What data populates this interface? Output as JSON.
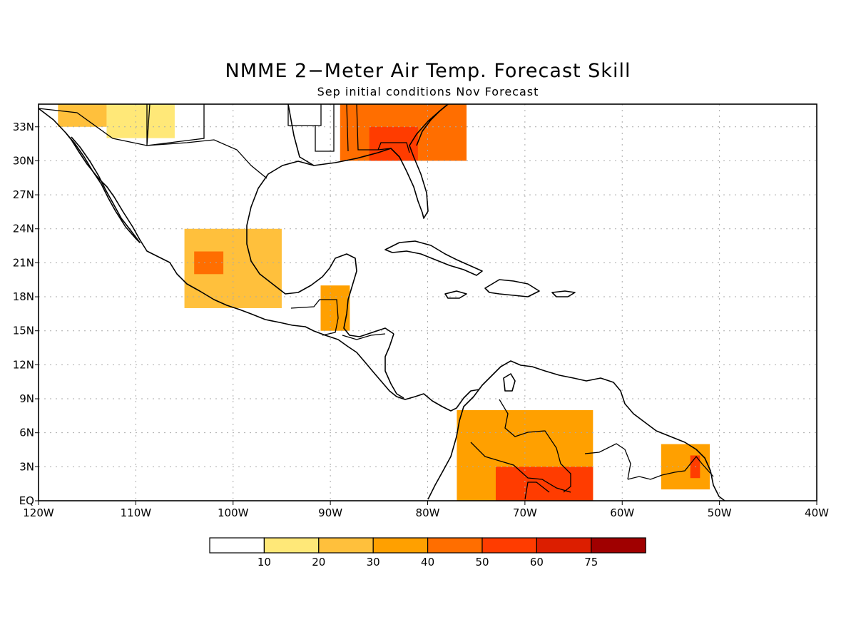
{
  "title": "NMME 2−Meter Air Temp. Forecast Skill",
  "subtitle": "Sep initial conditions   Nov Forecast",
  "axes": {
    "lon_ticks": [
      "120W",
      "110W",
      "100W",
      "90W",
      "80W",
      "70W",
      "60W",
      "50W",
      "40W"
    ],
    "lat_ticks": [
      "EQ",
      "3N",
      "6N",
      "9N",
      "12N",
      "15N",
      "18N",
      "21N",
      "24N",
      "27N",
      "30N",
      "33N"
    ],
    "lon_range": [
      -120,
      -40
    ],
    "lat_range": [
      0,
      35
    ],
    "grid": true
  },
  "legend": {
    "colors": [
      "#ffffff",
      "#ffe878",
      "#ffc03c",
      "#ffa000",
      "#ff6e00",
      "#ff3c00",
      "#dc1e00",
      "#a00000"
    ],
    "labels": [
      "10",
      "20",
      "30",
      "40",
      "50",
      "60",
      "75"
    ]
  },
  "chart_data": {
    "type": "heatmap",
    "variable": "2-Meter Air Temp. Forecast Skill",
    "bins": [
      "<10",
      "10-20",
      "20-30",
      "30-40",
      "40-50",
      "50-60",
      "60-75",
      ">75"
    ],
    "regions": [
      {
        "lon": [
          -118,
          -113
        ],
        "lat": [
          33,
          35
        ],
        "bin": 2
      },
      {
        "lon": [
          -113,
          -106
        ],
        "lat": [
          32,
          35
        ],
        "bin": 1
      },
      {
        "lon": [
          -89,
          -76
        ],
        "lat": [
          30,
          35
        ],
        "bin": 4
      },
      {
        "lon": [
          -86,
          -81
        ],
        "lat": [
          30,
          33
        ],
        "bin": 5
      },
      {
        "lon": [
          -105,
          -95
        ],
        "lat": [
          17,
          24
        ],
        "bin": 2
      },
      {
        "lon": [
          -104,
          -101
        ],
        "lat": [
          20,
          22
        ],
        "bin": 4
      },
      {
        "lon": [
          -91,
          -88
        ],
        "lat": [
          15,
          19
        ],
        "bin": 3
      },
      {
        "lon": [
          -77,
          -63
        ],
        "lat": [
          0,
          8
        ],
        "bin": 3
      },
      {
        "lon": [
          -73,
          -63
        ],
        "lat": [
          0,
          3
        ],
        "bin": 5
      },
      {
        "lon": [
          -56,
          -51
        ],
        "lat": [
          1,
          5
        ],
        "bin": 3
      },
      {
        "lon": [
          -53,
          -52
        ],
        "lat": [
          2,
          4
        ],
        "bin": 5
      }
    ]
  }
}
